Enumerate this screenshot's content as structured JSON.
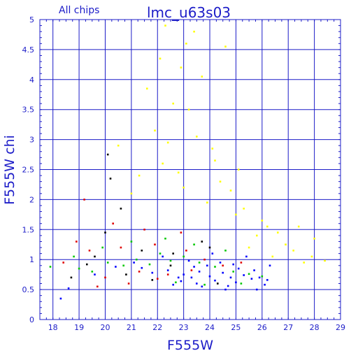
{
  "chart_data": {
    "type": "scatter",
    "title": "lmc_u63s03",
    "subtitle": "All chips",
    "xlabel": "F555W",
    "ylabel": "F555W chi",
    "xlim": [
      17.5,
      29
    ],
    "ylim": [
      0,
      5
    ],
    "x_ticks": [
      "18",
      "19",
      "20",
      "21",
      "22",
      "23",
      "24",
      "25",
      "26",
      "27",
      "28",
      "29"
    ],
    "y_ticks": [
      "0",
      "0.5",
      "1",
      "1.5",
      "2",
      "2.5",
      "3",
      "3.5",
      "4",
      "4.5",
      "5"
    ],
    "grid": true,
    "colors": {
      "axis": "#1c1cc8",
      "grid": "#1c1cc8",
      "text": "#1c1cc8"
    },
    "series": [
      {
        "color": "#0000ff",
        "points": [
          [
            23.0,
            0.75
          ],
          [
            23.3,
            0.7
          ],
          [
            23.6,
            0.8
          ],
          [
            24.0,
            0.72
          ],
          [
            24.2,
            0.65
          ],
          [
            24.5,
            0.78
          ],
          [
            24.8,
            0.7
          ],
          [
            25.0,
            0.62
          ],
          [
            25.3,
            0.74
          ],
          [
            25.6,
            0.68
          ],
          [
            25.9,
            0.7
          ],
          [
            26.2,
            0.66
          ],
          [
            22.4,
            0.82
          ],
          [
            22.8,
            0.7
          ],
          [
            21.8,
            0.78
          ],
          [
            21.4,
            0.86
          ],
          [
            23.9,
            0.9
          ],
          [
            24.4,
            0.95
          ],
          [
            25.1,
            0.85
          ],
          [
            25.7,
            0.82
          ],
          [
            26.1,
            0.58
          ],
          [
            24.7,
            0.56
          ],
          [
            23.5,
            0.6
          ],
          [
            22.9,
            0.64
          ],
          [
            24.9,
            0.92
          ],
          [
            23.2,
            0.98
          ],
          [
            22.2,
            1.05
          ],
          [
            21.1,
            0.95
          ],
          [
            20.4,
            0.88
          ],
          [
            19.6,
            0.75
          ],
          [
            18.6,
            0.52
          ],
          [
            18.3,
            0.35
          ],
          [
            25.4,
            1.05
          ],
          [
            24.1,
            1.1
          ],
          [
            26.3,
            0.9
          ],
          [
            23.7,
            0.55
          ],
          [
            24.6,
            0.5
          ],
          [
            25.8,
            0.5
          ],
          [
            22.6,
            0.58
          ],
          [
            23.4,
            0.88
          ]
        ]
      },
      {
        "color": "#ffff00",
        "points": [
          [
            22.3,
            4.9
          ],
          [
            23.4,
            4.8
          ],
          [
            23.1,
            4.6
          ],
          [
            24.6,
            4.55
          ],
          [
            22.1,
            4.35
          ],
          [
            22.9,
            4.2
          ],
          [
            23.7,
            4.05
          ],
          [
            21.6,
            3.85
          ],
          [
            22.6,
            3.6
          ],
          [
            23.2,
            3.5
          ],
          [
            21.9,
            3.15
          ],
          [
            22.4,
            2.95
          ],
          [
            23.5,
            3.05
          ],
          [
            24.1,
            2.85
          ],
          [
            22.2,
            2.6
          ],
          [
            21.3,
            2.4
          ],
          [
            24.4,
            2.3
          ],
          [
            25.1,
            2.5
          ],
          [
            24.8,
            2.15
          ],
          [
            23.9,
            1.95
          ],
          [
            25.3,
            1.85
          ],
          [
            26.0,
            1.65
          ],
          [
            26.6,
            1.45
          ],
          [
            27.2,
            1.15
          ],
          [
            27.9,
            1.05
          ],
          [
            28.4,
            0.98
          ],
          [
            28.0,
            1.35
          ],
          [
            27.4,
            1.55
          ],
          [
            26.9,
            1.25
          ],
          [
            26.4,
            1.05
          ],
          [
            25.8,
            1.4
          ],
          [
            25.5,
            1.2
          ],
          [
            20.5,
            2.9
          ],
          [
            21.0,
            2.1
          ],
          [
            22.8,
            2.45
          ],
          [
            24.2,
            2.65
          ],
          [
            23.0,
            2.2
          ],
          [
            25.0,
            1.75
          ],
          [
            26.2,
            1.55
          ],
          [
            27.6,
            0.95
          ]
        ]
      },
      {
        "color": "#00c800",
        "points": [
          [
            19.0,
            0.85
          ],
          [
            19.5,
            0.8
          ],
          [
            20.1,
            0.95
          ],
          [
            20.7,
            0.9
          ],
          [
            21.2,
            1.0
          ],
          [
            21.7,
            0.92
          ],
          [
            22.1,
            1.1
          ],
          [
            22.5,
            0.98
          ],
          [
            23.0,
            1.05
          ],
          [
            23.6,
            0.95
          ],
          [
            24.2,
            0.88
          ],
          [
            24.9,
            0.8
          ],
          [
            25.5,
            0.76
          ],
          [
            26.0,
            0.72
          ],
          [
            17.9,
            0.88
          ],
          [
            18.8,
            1.05
          ],
          [
            19.9,
            1.2
          ],
          [
            21.0,
            1.3
          ],
          [
            22.3,
            1.35
          ],
          [
            23.4,
            1.25
          ],
          [
            24.6,
            1.15
          ],
          [
            25.2,
            0.6
          ],
          [
            23.8,
            0.58
          ],
          [
            22.7,
            0.62
          ]
        ]
      },
      {
        "color": "#e00000",
        "points": [
          [
            18.4,
            0.95
          ],
          [
            18.9,
            1.3
          ],
          [
            19.4,
            1.15
          ],
          [
            20.0,
            0.7
          ],
          [
            20.6,
            1.2
          ],
          [
            21.3,
            0.8
          ],
          [
            21.9,
            1.25
          ],
          [
            22.4,
            0.75
          ],
          [
            23.1,
            1.15
          ],
          [
            23.8,
            1.0
          ],
          [
            24.5,
            0.9
          ],
          [
            25.2,
            0.95
          ],
          [
            19.2,
            2.0
          ],
          [
            20.3,
            1.6
          ],
          [
            21.5,
            1.5
          ],
          [
            22.9,
            1.45
          ],
          [
            19.7,
            0.55
          ],
          [
            20.9,
            0.6
          ],
          [
            22.0,
            0.68
          ],
          [
            23.3,
            0.82
          ]
        ]
      },
      {
        "color": "#000000",
        "points": [
          [
            20.2,
            2.35
          ],
          [
            20.6,
            1.85
          ],
          [
            20.0,
            1.45
          ],
          [
            21.4,
            1.15
          ],
          [
            22.6,
            1.1
          ],
          [
            23.7,
            1.3
          ],
          [
            24.3,
            0.6
          ],
          [
            19.3,
            0.92
          ],
          [
            18.7,
            0.7
          ],
          [
            20.8,
            0.75
          ],
          [
            21.8,
            0.66
          ],
          [
            22.5,
            0.9
          ],
          [
            20.1,
            2.75
          ],
          [
            19.6,
            1.05
          ],
          [
            24.0,
            1.2
          ]
        ]
      }
    ]
  }
}
